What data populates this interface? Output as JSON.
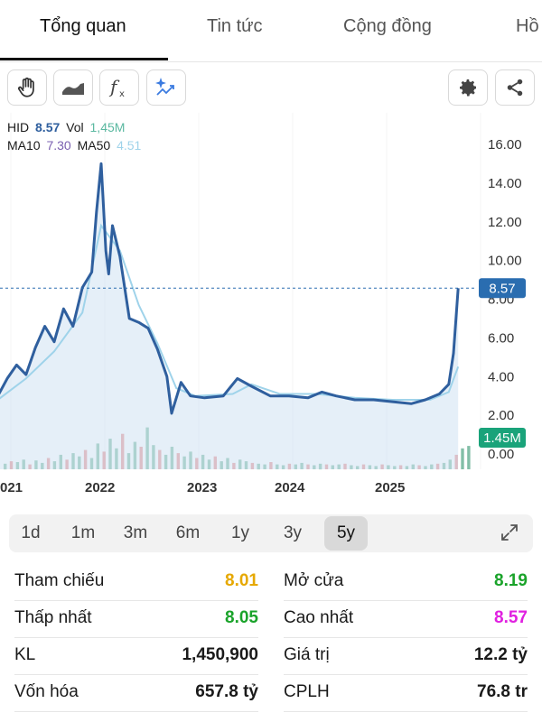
{
  "tabs": [
    {
      "label": "Tổng quan",
      "active": true
    },
    {
      "label": "Tin tức",
      "active": false
    },
    {
      "label": "Cộng đồng",
      "active": false
    },
    {
      "label": "Hồ",
      "active": false
    }
  ],
  "toolbar": {
    "left_icons": [
      "hand-icon",
      "area-chart-icon",
      "function-icon",
      "sparkle-chart-icon"
    ],
    "right_icons": [
      "gear-icon",
      "share-icon"
    ]
  },
  "legend": {
    "ticker": "HID",
    "price": "8.57",
    "vol_label": "Vol",
    "vol_value": "1,45M",
    "ma10_label": "MA10",
    "ma10_value": "7.30",
    "ma50_label": "MA50",
    "ma50_value": "4.51"
  },
  "colors": {
    "price_line": "#2f5f9e",
    "ma10": "#7a5fb0",
    "ma50": "#9fd3ea",
    "vol_up": "#5aa88a",
    "vol_down": "#e07070",
    "badge": "#2a6db0",
    "vol_badge": "#1aa37a",
    "ref": "#e6a800",
    "up": "#1aa32a",
    "ceiling": "#e020e0"
  },
  "chart_data": {
    "type": "line",
    "x_labels": [
      "021",
      "2022",
      "2023",
      "2024",
      "2025"
    ],
    "y_ticks": [
      "16.00",
      "14.00",
      "12.00",
      "10.00",
      "8.00",
      "6.00",
      "4.00",
      "2.00",
      "0.00"
    ],
    "ylim": [
      0,
      16
    ],
    "current_price_badge": "8.57",
    "current_volume_badge": "1.45M",
    "series": [
      {
        "name": "HID",
        "points": [
          [
            2020.9,
            3.0
          ],
          [
            2021.0,
            3.9
          ],
          [
            2021.1,
            4.6
          ],
          [
            2021.2,
            4.1
          ],
          [
            2021.3,
            5.5
          ],
          [
            2021.4,
            6.6
          ],
          [
            2021.5,
            5.8
          ],
          [
            2021.6,
            7.5
          ],
          [
            2021.7,
            6.6
          ],
          [
            2021.8,
            8.6
          ],
          [
            2021.9,
            9.4
          ],
          [
            2021.95,
            12.5
          ],
          [
            2022.0,
            15.0
          ],
          [
            2022.05,
            10.5
          ],
          [
            2022.08,
            9.3
          ],
          [
            2022.12,
            11.8
          ],
          [
            2022.2,
            10.2
          ],
          [
            2022.3,
            7.0
          ],
          [
            2022.4,
            6.8
          ],
          [
            2022.5,
            6.5
          ],
          [
            2022.6,
            5.4
          ],
          [
            2022.7,
            4.0
          ],
          [
            2022.75,
            2.1
          ],
          [
            2022.85,
            3.7
          ],
          [
            2022.95,
            3.0
          ],
          [
            2023.1,
            2.9
          ],
          [
            2023.3,
            3.0
          ],
          [
            2023.45,
            3.9
          ],
          [
            2023.6,
            3.5
          ],
          [
            2023.8,
            3.0
          ],
          [
            2024.0,
            3.0
          ],
          [
            2024.2,
            2.9
          ],
          [
            2024.35,
            3.2
          ],
          [
            2024.5,
            3.0
          ],
          [
            2024.7,
            2.8
          ],
          [
            2024.9,
            2.8
          ],
          [
            2025.1,
            2.7
          ],
          [
            2025.3,
            2.6
          ],
          [
            2025.45,
            2.8
          ],
          [
            2025.6,
            3.1
          ],
          [
            2025.7,
            3.6
          ],
          [
            2025.75,
            5.2
          ],
          [
            2025.8,
            8.57
          ]
        ]
      },
      {
        "name": "MA50",
        "points": [
          [
            2020.9,
            2.8
          ],
          [
            2021.2,
            3.9
          ],
          [
            2021.5,
            5.3
          ],
          [
            2021.8,
            7.3
          ],
          [
            2022.0,
            11.8
          ],
          [
            2022.2,
            10.5
          ],
          [
            2022.4,
            7.7
          ],
          [
            2022.6,
            5.7
          ],
          [
            2022.8,
            3.4
          ],
          [
            2023.0,
            3.0
          ],
          [
            2023.4,
            3.1
          ],
          [
            2023.6,
            3.6
          ],
          [
            2023.9,
            3.1
          ],
          [
            2024.3,
            3.1
          ],
          [
            2024.7,
            2.9
          ],
          [
            2025.1,
            2.8
          ],
          [
            2025.5,
            2.8
          ],
          [
            2025.7,
            3.2
          ],
          [
            2025.8,
            4.51
          ]
        ]
      }
    ],
    "volume_millions": [
      0.35,
      0.5,
      0.45,
      0.6,
      0.3,
      0.55,
      0.4,
      0.7,
      0.5,
      0.9,
      0.6,
      1.0,
      0.8,
      1.2,
      0.7,
      1.6,
      1.1,
      1.9,
      1.3,
      2.2,
      1.0,
      1.7,
      1.4,
      2.6,
      1.5,
      1.2,
      0.9,
      1.4,
      1.0,
      0.8,
      1.1,
      0.7,
      0.9,
      0.6,
      0.8,
      0.5,
      0.7,
      0.4,
      0.6,
      0.5,
      0.4,
      0.35,
      0.3,
      0.45,
      0.3,
      0.25,
      0.35,
      0.3,
      0.4,
      0.3,
      0.25,
      0.35,
      0.3,
      0.25,
      0.3,
      0.35,
      0.25,
      0.2,
      0.3,
      0.25,
      0.2,
      0.3,
      0.25,
      0.2,
      0.25,
      0.2,
      0.3,
      0.25,
      0.2,
      0.3,
      0.35,
      0.4,
      0.6,
      0.9,
      1.3,
      1.45
    ]
  },
  "periods": [
    {
      "label": "1d",
      "active": false
    },
    {
      "label": "1m",
      "active": false
    },
    {
      "label": "3m",
      "active": false
    },
    {
      "label": "6m",
      "active": false
    },
    {
      "label": "1y",
      "active": false
    },
    {
      "label": "3y",
      "active": false
    },
    {
      "label": "5y",
      "active": true
    }
  ],
  "stats": {
    "left": [
      {
        "label": "Tham chiếu",
        "value": "8.01",
        "color": "#e6a800"
      },
      {
        "label": "Thấp nhất",
        "value": "8.05",
        "color": "#1aa32a"
      },
      {
        "label": "KL",
        "value": "1,450,900",
        "color": "#1a1a1a"
      },
      {
        "label": "Vốn hóa",
        "value": "657.8 tỷ",
        "color": "#1a1a1a"
      }
    ],
    "right": [
      {
        "label": "Mở cửa",
        "value": "8.19",
        "color": "#1aa32a"
      },
      {
        "label": "Cao nhất",
        "value": "8.57",
        "color": "#e020e0"
      },
      {
        "label": "Giá trị",
        "value": "12.2 tỷ",
        "color": "#1a1a1a"
      },
      {
        "label": "CPLH",
        "value": "76.8 tr",
        "color": "#1a1a1a"
      }
    ]
  }
}
